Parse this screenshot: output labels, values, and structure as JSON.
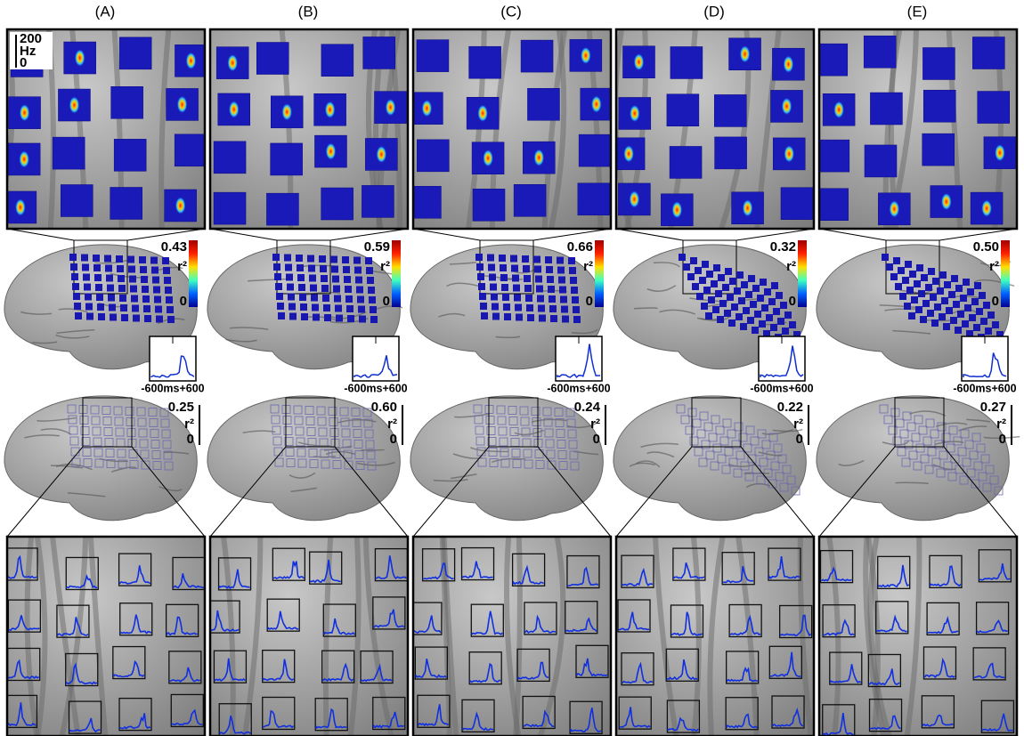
{
  "columns": [
    {
      "label": "(A)",
      "activation_r2_max": "0.43",
      "trace_r2_max": "0.25"
    },
    {
      "label": "(B)",
      "activation_r2_max": "0.59",
      "trace_r2_max": "0.60"
    },
    {
      "label": "(C)",
      "activation_r2_max": "0.66",
      "trace_r2_max": "0.24"
    },
    {
      "label": "(D)",
      "activation_r2_max": "0.32",
      "trace_r2_max": "0.22"
    },
    {
      "label": "(E)",
      "activation_r2_max": "0.50",
      "trace_r2_max": "0.27"
    }
  ],
  "frequency_scale": {
    "top": "200",
    "unit": "Hz",
    "bottom": "0"
  },
  "r2_symbol": "r²",
  "r2_min": "0",
  "time_axis": "-600ms+600"
}
